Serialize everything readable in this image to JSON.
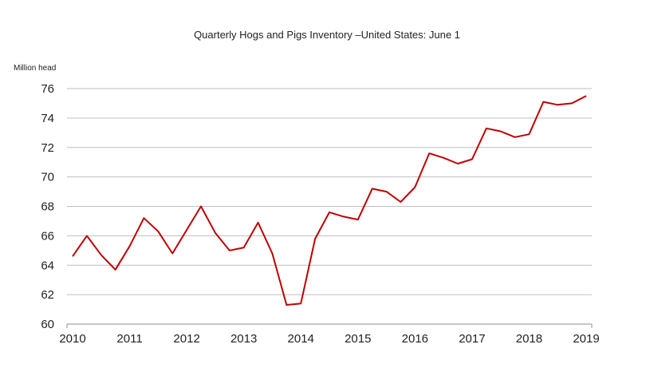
{
  "chart_data": {
    "type": "line",
    "title": "Quarterly Hogs and Pigs Inventory –United States: June 1",
    "ylabel": "Million head",
    "xlabel": "",
    "ylim": [
      60,
      76
    ],
    "yticks": [
      60,
      62,
      64,
      66,
      68,
      70,
      72,
      74,
      76
    ],
    "xlim": [
      2010,
      2019
    ],
    "xticks": [
      2010,
      2011,
      2012,
      2013,
      2014,
      2015,
      2016,
      2017,
      2018,
      2019
    ],
    "grid": true,
    "legend": "none",
    "line_color": "#c00000",
    "series": [
      {
        "x": [
          2010.0,
          2010.25,
          2010.5,
          2010.75,
          2011.0,
          2011.25,
          2011.5,
          2011.75,
          2012.0,
          2012.25,
          2012.5,
          2012.75,
          2013.0,
          2013.25,
          2013.5,
          2013.75,
          2014.0,
          2014.25,
          2014.5,
          2014.75,
          2015.0,
          2015.25,
          2015.5,
          2015.75,
          2016.0,
          2016.25,
          2016.5,
          2016.75,
          2017.0,
          2017.25,
          2017.5,
          2017.75,
          2018.0,
          2018.25,
          2018.5,
          2018.75,
          2019.0
        ],
        "values": [
          64.6,
          66.0,
          64.7,
          63.7,
          65.3,
          67.2,
          66.3,
          64.8,
          66.4,
          68.0,
          66.2,
          65.0,
          65.2,
          66.9,
          64.8,
          61.3,
          61.4,
          65.8,
          67.6,
          67.3,
          67.1,
          69.2,
          69.0,
          68.3,
          69.3,
          71.6,
          71.3,
          70.9,
          71.2,
          73.3,
          73.1,
          72.7,
          72.9,
          75.1,
          74.9,
          75.0,
          75.5
        ]
      }
    ]
  }
}
